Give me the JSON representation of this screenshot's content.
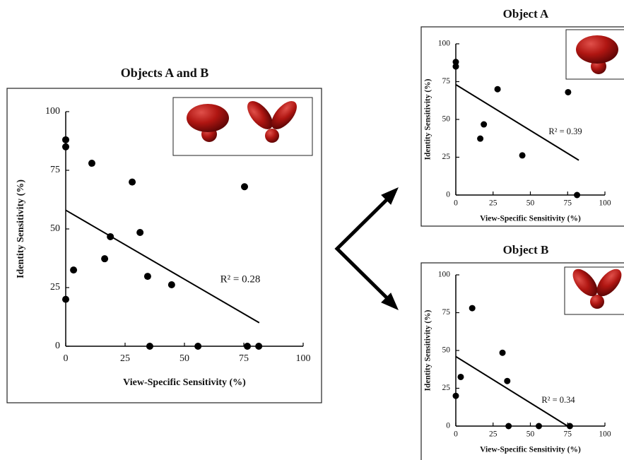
{
  "chart_data": [
    {
      "type": "scatter",
      "title": "Objects A and B",
      "xlabel": "View-Specific Sensitivity (%)",
      "ylabel": "Identity Sensitivity (%)",
      "annotation": "R² = 0.28",
      "x": [
        0,
        0,
        11,
        28,
        75.3,
        31.3,
        18.8,
        16.4,
        3.3,
        34.5,
        44.6,
        0,
        35.4,
        55.7,
        76.5,
        81.3
      ],
      "y": [
        88,
        85,
        78,
        70,
        68,
        48.5,
        46.7,
        37.3,
        32.5,
        29.8,
        26.2,
        20,
        0,
        0,
        0,
        0
      ],
      "trendline": {
        "x": [
          0,
          81.5
        ],
        "y": [
          58,
          10
        ]
      },
      "xlim": [
        0,
        100
      ],
      "ylim": [
        0,
        100
      ],
      "xticks": [
        0,
        25,
        50,
        75,
        100
      ],
      "yticks": [
        0,
        25,
        50,
        75,
        100
      ],
      "color": "#000000"
    },
    {
      "type": "scatter",
      "title": "Object A",
      "xlabel": "View-Specific Sensitivity (%)",
      "ylabel": "Identity Sensitivity (%)",
      "annotation": "R² = 0.39",
      "x": [
        0,
        0,
        28,
        18.8,
        16.4,
        44.6,
        75.3,
        81.3
      ],
      "y": [
        88,
        85,
        70,
        46.7,
        37.3,
        26.2,
        68,
        0
      ],
      "trendline": {
        "x": [
          0,
          82.5
        ],
        "y": [
          73,
          23
        ]
      },
      "xlim": [
        0,
        100
      ],
      "ylim": [
        0,
        100
      ],
      "xticks": [
        0,
        25,
        50,
        75,
        100
      ],
      "yticks": [
        0,
        25,
        50,
        75,
        100
      ],
      "color": "#000000"
    },
    {
      "type": "scatter",
      "title": "Object B",
      "xlabel": "View-Specific Sensitivity (%)",
      "ylabel": "Identity Sensitivity (%)",
      "annotation": "R² = 0.34",
      "x": [
        0,
        3.3,
        11,
        31.3,
        34.5,
        35.4,
        55.7,
        76.5
      ],
      "y": [
        20,
        32.5,
        78,
        48.5,
        29.8,
        0,
        0,
        0
      ],
      "trendline": {
        "x": [
          0,
          75
        ],
        "y": [
          46,
          0
        ]
      },
      "xlim": [
        0,
        100
      ],
      "ylim": [
        0,
        100
      ],
      "xticks": [
        0,
        25,
        50,
        75,
        100
      ],
      "yticks": [
        0,
        25,
        50,
        75,
        100
      ],
      "color": "#000000"
    }
  ]
}
